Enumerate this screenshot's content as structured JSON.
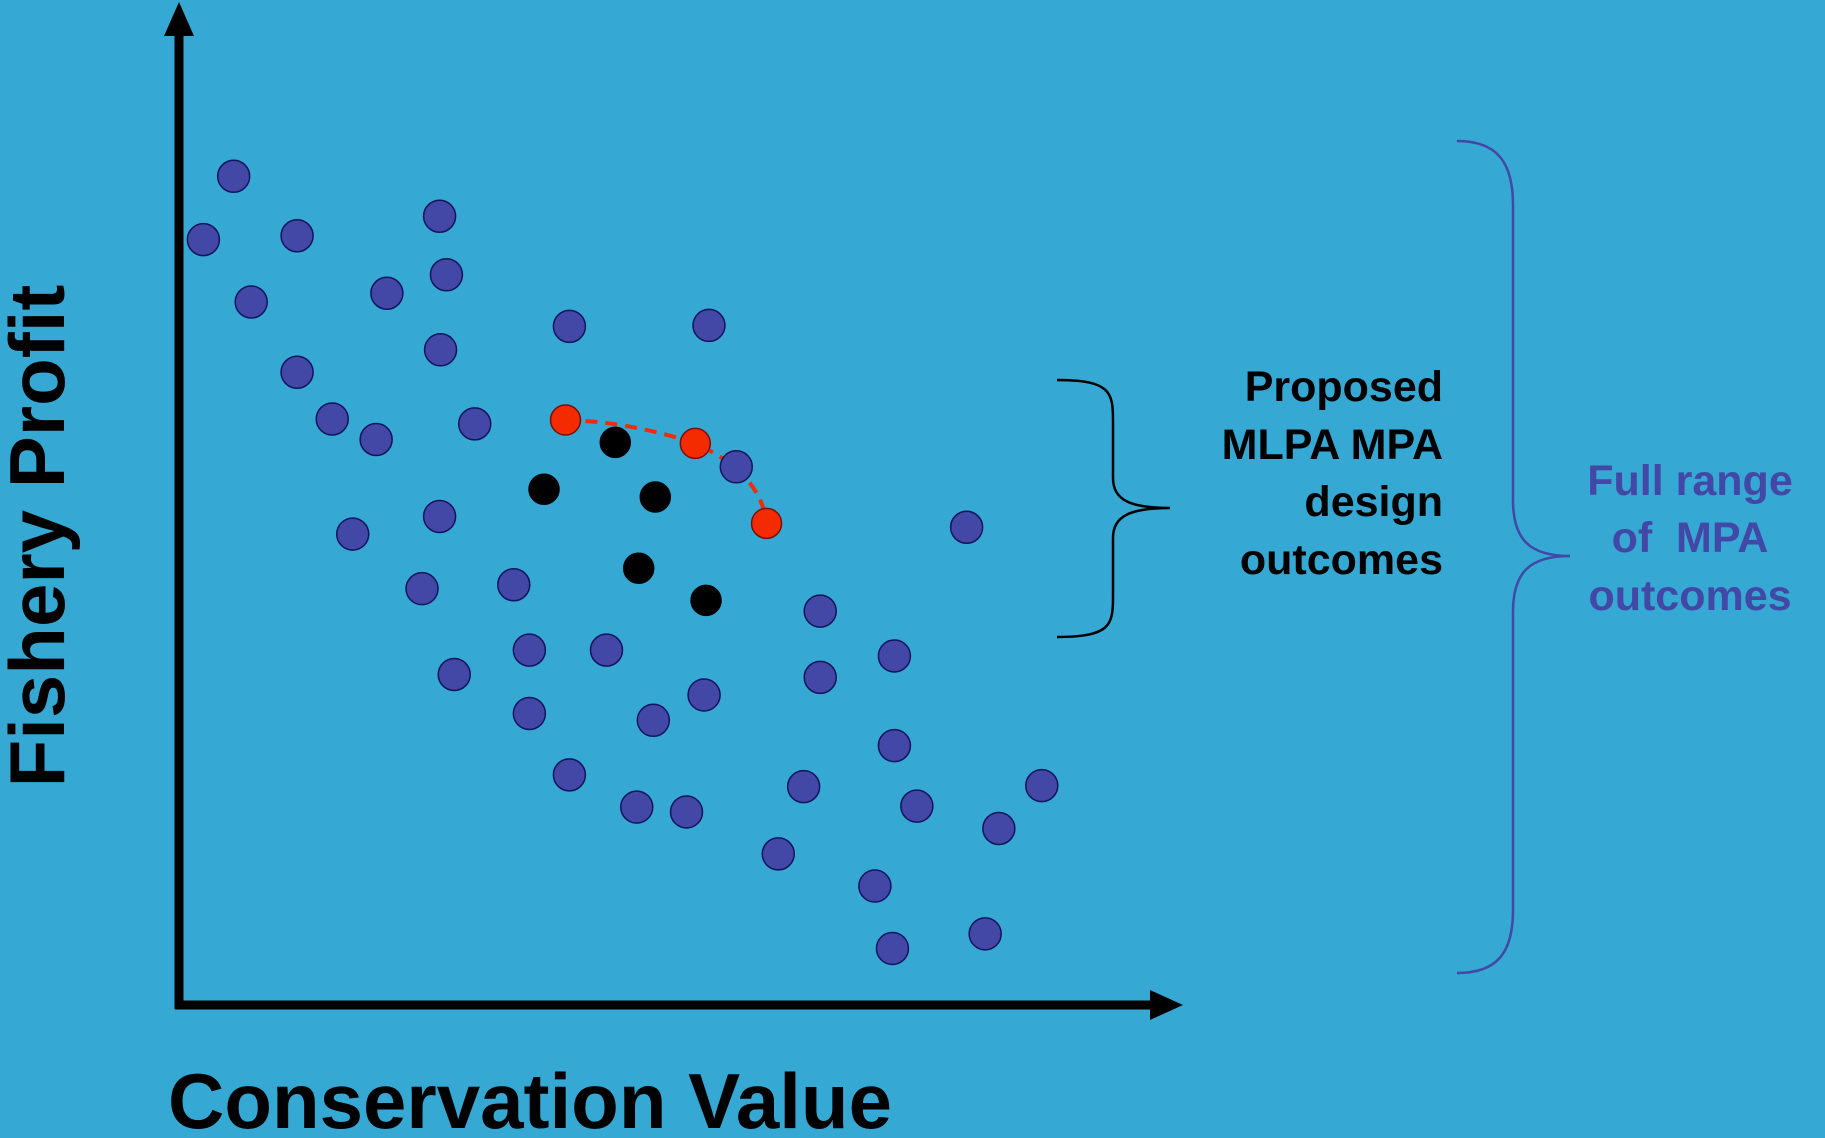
{
  "colors": {
    "background": "#35A8D3",
    "axis": "#000000",
    "point_fill": "#4347A6",
    "point_stroke": "#10145A",
    "proposed_fill": "#000000",
    "frontier_fill": "#F42A00",
    "frontier_line": "#F42A00",
    "bracket_full": "#4347A6",
    "bracket_proposed": "#000000",
    "label_full": "#4347A6",
    "label_proposed": "#000000"
  },
  "chart_data": {
    "type": "scatter",
    "xlabel": "Conservation Value",
    "ylabel": "Fishery Profit",
    "xlim": [
      0,
      100
    ],
    "ylim": [
      0,
      100
    ],
    "grid": false,
    "series": [
      {
        "role": "all-outcomes",
        "points": [
          [
            2.5,
            78.5
          ],
          [
            5.6,
            85.0
          ],
          [
            7.4,
            72.1
          ],
          [
            12.1,
            78.9
          ],
          [
            12.1,
            64.9
          ],
          [
            15.7,
            60.1
          ],
          [
            20.2,
            58.0
          ],
          [
            17.8,
            48.3
          ],
          [
            21.3,
            73.0
          ],
          [
            26.7,
            80.9
          ],
          [
            26.8,
            67.2
          ],
          [
            27.4,
            74.9
          ],
          [
            26.7,
            50.1
          ],
          [
            30.3,
            59.6
          ],
          [
            40.0,
            69.6
          ],
          [
            54.3,
            69.7
          ],
          [
            24.9,
            42.7
          ],
          [
            34.3,
            43.1
          ],
          [
            57.1,
            55.2
          ],
          [
            80.7,
            49.0
          ],
          [
            65.7,
            40.4
          ],
          [
            35.9,
            36.4
          ],
          [
            43.8,
            36.4
          ],
          [
            28.2,
            33.9
          ],
          [
            65.7,
            33.6
          ],
          [
            73.3,
            35.8
          ],
          [
            53.8,
            31.8
          ],
          [
            48.6,
            29.2
          ],
          [
            35.9,
            29.9
          ],
          [
            73.3,
            26.6
          ],
          [
            40.0,
            23.6
          ],
          [
            46.9,
            20.3
          ],
          [
            52.0,
            19.8
          ],
          [
            64.0,
            22.4
          ],
          [
            75.6,
            20.4
          ],
          [
            84.0,
            18.1
          ],
          [
            88.4,
            22.5
          ],
          [
            61.4,
            15.5
          ],
          [
            71.3,
            12.2
          ],
          [
            82.6,
            7.3
          ],
          [
            73.1,
            5.8
          ]
        ]
      },
      {
        "role": "proposed-designs",
        "points": [
          [
            44.7,
            57.7
          ],
          [
            37.4,
            52.9
          ],
          [
            48.8,
            52.1
          ],
          [
            47.1,
            44.8
          ],
          [
            54.0,
            41.5
          ]
        ]
      },
      {
        "role": "frontier",
        "connected": true,
        "points": [
          [
            39.6,
            60.0
          ],
          [
            52.9,
            57.6
          ],
          [
            60.2,
            49.4
          ]
        ]
      }
    ],
    "annotations": [
      {
        "name": "proposed",
        "lines": [
          "Proposed",
          "MLPA MPA",
          "design",
          "outcomes"
        ]
      },
      {
        "name": "full-range",
        "lines": [
          "Full range",
          "of  MPA",
          "outcomes"
        ]
      }
    ]
  }
}
